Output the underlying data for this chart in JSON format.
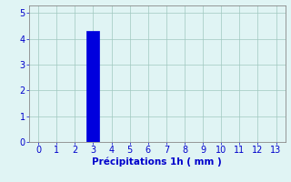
{
  "bar_x": 3,
  "bar_height": 4.3,
  "bar_width": 0.7,
  "bar_color": "#0000dd",
  "bar_edgecolor": "#0000dd",
  "xlim": [
    -0.5,
    13.5
  ],
  "ylim": [
    0,
    5.3
  ],
  "xticks": [
    0,
    1,
    2,
    3,
    4,
    5,
    6,
    7,
    8,
    9,
    10,
    11,
    12,
    13
  ],
  "yticks": [
    0,
    1,
    2,
    3,
    4,
    5
  ],
  "xlabel": "Précipitations 1h ( mm )",
  "xlabel_color": "#0000cc",
  "xlabel_fontsize": 7.5,
  "tick_color": "#0000cc",
  "tick_fontsize": 7,
  "background_color": "#e0f4f4",
  "grid_color": "#a0c8c0",
  "spine_color": "#888888",
  "figsize": [
    3.2,
    2.0
  ],
  "dpi": 100
}
